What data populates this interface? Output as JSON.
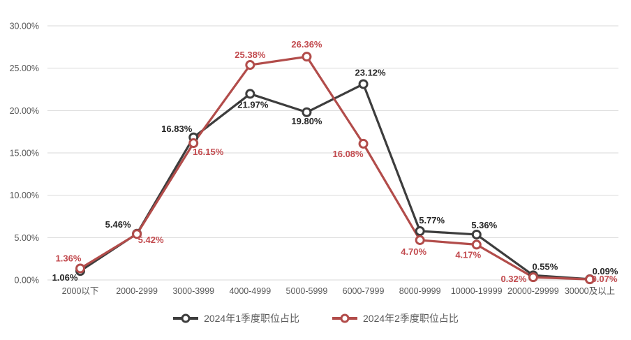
{
  "chart_data": {
    "type": "line",
    "title": "",
    "categories": [
      "2000以下",
      "2000-2999",
      "3000-3999",
      "4000-4999",
      "5000-5999",
      "6000-7999",
      "8000-9999",
      "10000-19999",
      "20000-29999",
      "30000及以上"
    ],
    "series": [
      {
        "name": "2024年1季度职位占比",
        "color": "#3d3d3d",
        "label_color": "#262626",
        "values": [
          1.06,
          5.46,
          16.83,
          21.97,
          19.8,
          23.12,
          5.77,
          5.36,
          0.55,
          0.09
        ],
        "labels": [
          "1.06%",
          "5.46%",
          "16.83%",
          "21.97%",
          "19.80%",
          "23.12%",
          "5.77%",
          "5.36%",
          "0.55%",
          "0.09%"
        ],
        "label_offsets": [
          [
            -22,
            14
          ],
          [
            -27,
            -9
          ],
          [
            -24,
            -8
          ],
          [
            4,
            20
          ],
          [
            0,
            17
          ],
          [
            10,
            -12
          ],
          [
            17,
            -11
          ],
          [
            11,
            -9
          ],
          [
            17,
            -8
          ],
          [
            22,
            -7
          ]
        ]
      },
      {
        "name": "2024年2季度职位占比",
        "color": "#b24c4a",
        "label_color": "#c24a4e",
        "values": [
          1.36,
          5.42,
          16.15,
          25.38,
          26.36,
          16.08,
          4.7,
          4.17,
          0.32,
          0.07
        ],
        "labels": [
          "1.36%",
          "5.42%",
          "16.15%",
          "25.38%",
          "26.36%",
          "16.08%",
          "4.70%",
          "4.17%",
          "0.32%",
          "0.07%"
        ],
        "label_offsets": [
          [
            -17,
            -10
          ],
          [
            20,
            13
          ],
          [
            21,
            17
          ],
          [
            0,
            -10
          ],
          [
            0,
            -13
          ],
          [
            -22,
            19
          ],
          [
            -9,
            21
          ],
          [
            -12,
            19
          ],
          [
            -28,
            7
          ],
          [
            21,
            4
          ]
        ]
      }
    ],
    "y_axis": {
      "min": 0,
      "max": 30,
      "step": 5,
      "tick_labels": [
        "0.00%",
        "5.00%",
        "10.00%",
        "15.00%",
        "20.00%",
        "25.00%",
        "30.00%"
      ]
    },
    "xlabel": "",
    "ylabel": "",
    "grid": true,
    "legend_position": "bottom"
  },
  "colors": {
    "background": "#ffffff",
    "gridline": "#d9d9d9",
    "axis_text": "#595959",
    "marker_fill": "#ffffff"
  }
}
